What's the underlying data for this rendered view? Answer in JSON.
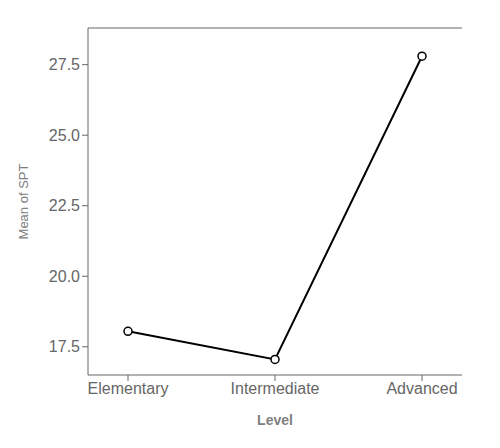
{
  "chart_data": {
    "type": "line",
    "categories": [
      "Elementary",
      "Intermediate",
      "Advanced"
    ],
    "values": [
      18.05,
      17.05,
      27.8
    ],
    "xlabel": "Level",
    "ylabel": "Mean of SPT",
    "ylim": [
      16.5,
      28.8
    ],
    "yticks": [
      17.5,
      {
        "value": 20,
        "label": "20.0"
      },
      22.5,
      {
        "value": 25,
        "label": "25.0"
      },
      27.5
    ],
    "color": "#000000",
    "marker": "circle"
  }
}
